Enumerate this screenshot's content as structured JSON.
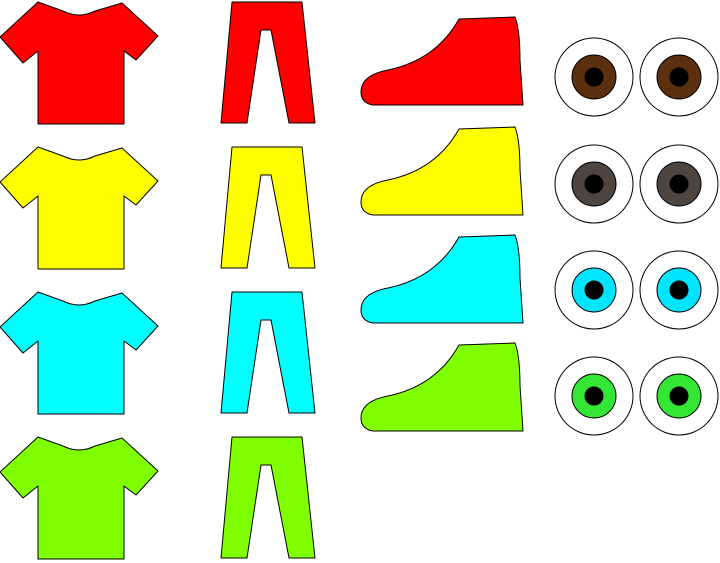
{
  "shirts": [
    {
      "color": "#ff0000",
      "icon": "t-shirt-icon"
    },
    {
      "color": "#ffff00",
      "icon": "t-shirt-icon"
    },
    {
      "color": "#00ffff",
      "icon": "t-shirt-icon"
    },
    {
      "color": "#80ff00",
      "icon": "t-shirt-icon"
    }
  ],
  "pants": [
    {
      "color": "#ff0000",
      "icon": "pants-icon"
    },
    {
      "color": "#ffff00",
      "icon": "pants-icon"
    },
    {
      "color": "#00ffff",
      "icon": "pants-icon"
    },
    {
      "color": "#80ff00",
      "icon": "pants-icon"
    }
  ],
  "shoes": [
    {
      "color": "#ff0000",
      "icon": "shoe-icon"
    },
    {
      "color": "#ffff00",
      "icon": "shoe-icon"
    },
    {
      "color": "#00ffff",
      "icon": "shoe-icon"
    },
    {
      "color": "#80ff00",
      "icon": "shoe-icon"
    }
  ],
  "eyes": [
    {
      "iris": "#5c2f0e",
      "icon": "eyes-icon"
    },
    {
      "iris": "#4d4540",
      "icon": "eyes-icon"
    },
    {
      "iris": "#00e5ff",
      "icon": "eyes-icon"
    },
    {
      "iris": "#33e633",
      "icon": "eyes-icon"
    }
  ]
}
